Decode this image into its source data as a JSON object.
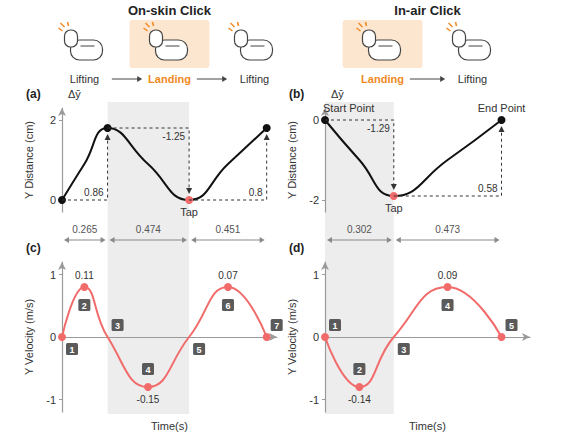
{
  "figure": {
    "columns": [
      {
        "title": "On-skin Click",
        "phases": [
          "Lifting",
          "Landing",
          "Lifting"
        ],
        "phase_colors": [
          "#333333",
          "#f08a24",
          "#333333"
        ]
      },
      {
        "title": "In-air Click",
        "phases": [
          "Landing",
          "Lifting"
        ],
        "phase_colors": [
          "#f08a24",
          "#333333"
        ]
      }
    ]
  },
  "chart_data": [
    {
      "panel": "(a)",
      "type": "line",
      "ylabel": "Y Distance (cm)",
      "y_symbol": "Δȳ",
      "x": [
        0,
        0.13,
        0.265,
        0.5,
        0.739,
        0.965,
        1.19
      ],
      "values": [
        0,
        0.9,
        1.8,
        0.9,
        0,
        0.9,
        1.8
      ],
      "color": "#111111",
      "colors": [
        "#111111",
        null,
        "#111111",
        null,
        "#f26b6b",
        null,
        "#111111"
      ],
      "point_labels": [
        null,
        null,
        null,
        null,
        "Tap",
        null,
        null
      ],
      "deltas": [
        0.86,
        -1.25,
        0.8
      ],
      "durations": [
        0.265,
        0.474,
        0.451
      ],
      "landing_span": [
        0.265,
        0.739
      ],
      "xlim": [
        0,
        1.25
      ],
      "ylim": [
        -0.3,
        2.3
      ],
      "yticks": [
        0,
        2
      ],
      "tick_labels": "y"
    },
    {
      "panel": "(b)",
      "type": "line",
      "ylabel": "Y Distance (cm)",
      "y_symbol": "Δȳ",
      "x": [
        0,
        0.151,
        0.302,
        0.538,
        0.775
      ],
      "values": [
        0,
        -1.0,
        -1.9,
        -1.0,
        0
      ],
      "color": "#111111",
      "colors": [
        "#111111",
        null,
        "#f26b6b",
        null,
        "#111111"
      ],
      "point_labels": [
        "Start Point",
        null,
        "Tap",
        null,
        "End Point"
      ],
      "deltas": [
        -1.29,
        0.58
      ],
      "durations": [
        0.302,
        0.473
      ],
      "landing_span": [
        0,
        0.302
      ],
      "xlim": [
        0,
        0.9
      ],
      "ylim": [
        -2.3,
        0.3
      ],
      "yticks": [
        -2,
        0
      ],
      "tick_labels": "y"
    },
    {
      "panel": "(c)",
      "type": "line",
      "ylabel": "Y Velocity (m/s)",
      "xlabel": "Time(s)",
      "x": [
        0,
        0.13,
        0.265,
        0.5,
        0.739,
        0.965,
        1.19
      ],
      "values": [
        0,
        0.8,
        0,
        -0.8,
        0,
        0.8,
        0
      ],
      "color": "#f26b6b",
      "colors": [
        "#f26b6b",
        "#f26b6b",
        null,
        "#f26b6b",
        null,
        "#f26b6b",
        "#f26b6b"
      ],
      "badges": [
        1,
        2,
        3,
        4,
        5,
        6,
        7
      ],
      "point_notes": [
        null,
        0.11,
        null,
        -0.15,
        null,
        0.07,
        null
      ],
      "xlim": [
        0,
        1.25
      ],
      "ylim": [
        -1.2,
        1.2
      ],
      "yticks": [
        -1,
        0,
        1
      ],
      "tick_labels": "y"
    },
    {
      "panel": "(d)",
      "type": "line",
      "ylabel": "Y Velocity (m/s)",
      "xlabel": "Time(s)",
      "x": [
        0,
        0.151,
        0.302,
        0.538,
        0.775
      ],
      "values": [
        0,
        -0.8,
        0,
        0.8,
        0
      ],
      "color": "#f26b6b",
      "colors": [
        "#f26b6b",
        "#f26b6b",
        null,
        "#f26b6b",
        "#f26b6b"
      ],
      "badges": [
        1,
        2,
        3,
        4,
        5
      ],
      "point_notes": [
        null,
        -0.14,
        null,
        0.09,
        null
      ],
      "xlim": [
        0,
        0.9
      ],
      "ylim": [
        -1.2,
        1.2
      ],
      "yticks": [
        -1,
        0,
        1
      ],
      "tick_labels": "y"
    }
  ]
}
